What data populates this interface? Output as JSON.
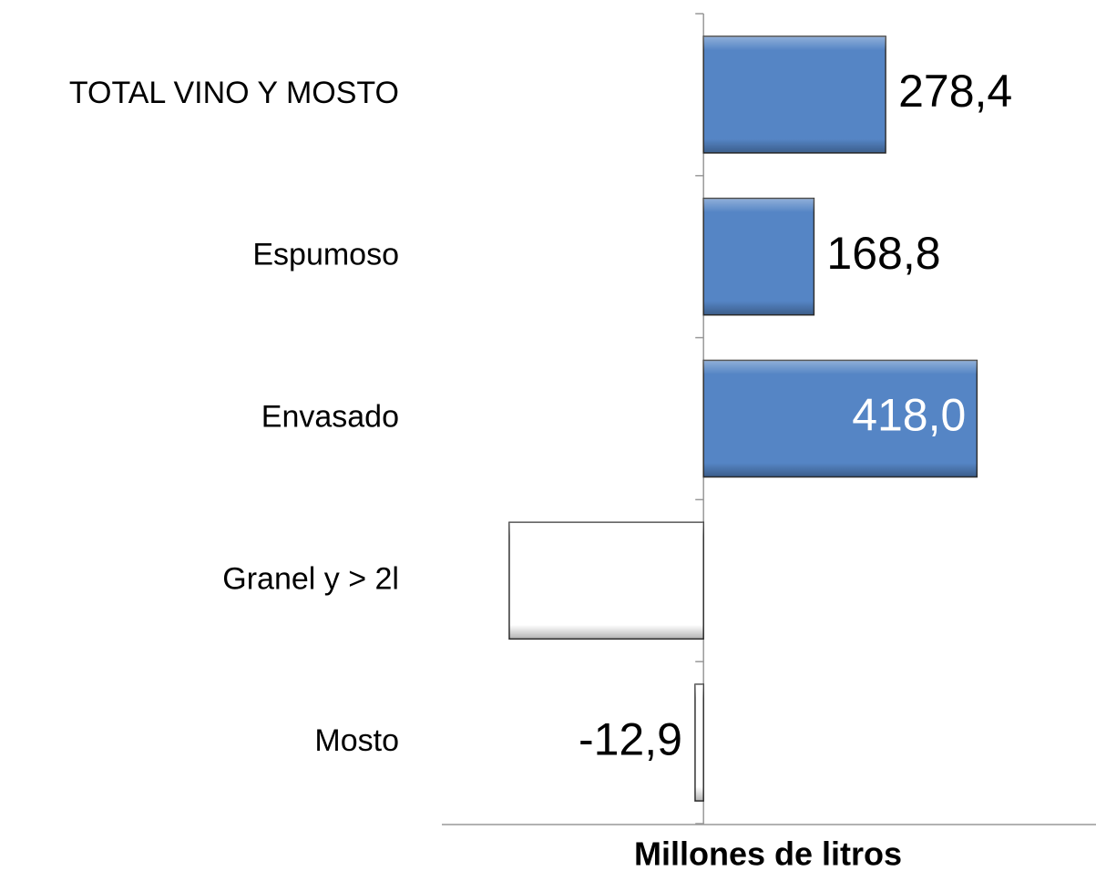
{
  "chart_data": {
    "type": "barh",
    "categories": [
      "TOTAL VINO Y MOSTO",
      "Espumoso",
      "Envasado",
      "Granel y > 2l",
      "Mosto"
    ],
    "values": [
      278.4,
      168.8,
      418.0,
      -297,
      -12.9
    ],
    "value_labels": [
      "278,4",
      "168,8",
      "418,0",
      null,
      "-12,9"
    ],
    "colors": [
      "#5585c5",
      "#5585c5",
      "#5585c5",
      "#ffffff",
      "#ffffff"
    ],
    "xlabel": "Millones de litros",
    "xlim": [
      -400,
      600
    ]
  }
}
